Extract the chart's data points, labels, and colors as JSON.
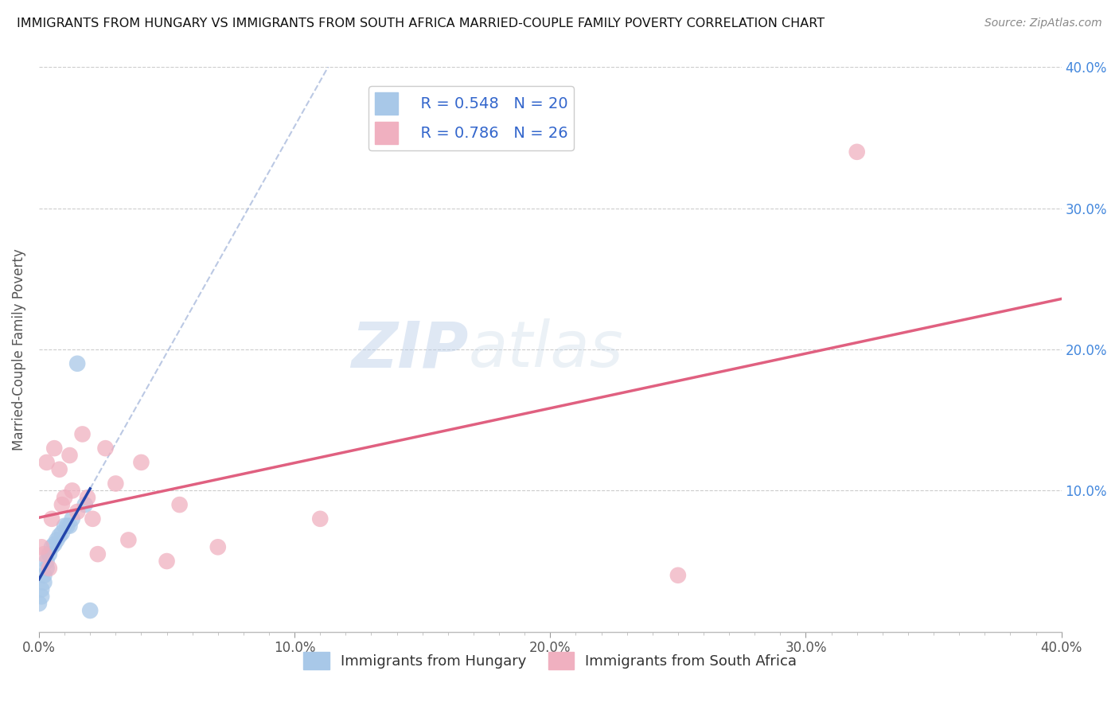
{
  "title": "IMMIGRANTS FROM HUNGARY VS IMMIGRANTS FROM SOUTH AFRICA MARRIED-COUPLE FAMILY POVERTY CORRELATION CHART",
  "source": "Source: ZipAtlas.com",
  "xlabel_bottom": "Immigrants from Hungary",
  "ylabel": "Married-Couple Family Poverty",
  "legend_hungary": "R = 0.548   N = 20",
  "legend_sa": "R = 0.786   N = 26",
  "xlim": [
    0.0,
    0.4
  ],
  "ylim": [
    0.0,
    0.4
  ],
  "color_hungary": "#a8c8e8",
  "color_sa": "#f0b0c0",
  "color_hungary_line": "#2244aa",
  "color_sa_line": "#e06080",
  "color_dash": "#aabbdd",
  "watermark_zip": "ZIP",
  "watermark_atlas": "atlas",
  "hungary_x": [
    0.0,
    0.001,
    0.001,
    0.002,
    0.002,
    0.003,
    0.003,
    0.004,
    0.005,
    0.006,
    0.007,
    0.008,
    0.009,
    0.01,
    0.011,
    0.012,
    0.013,
    0.015,
    0.018,
    0.02
  ],
  "hungary_y": [
    0.02,
    0.025,
    0.03,
    0.035,
    0.04,
    0.045,
    0.05,
    0.055,
    0.06,
    0.062,
    0.065,
    0.068,
    0.07,
    0.075,
    0.075,
    0.075,
    0.08,
    0.19,
    0.09,
    0.015
  ],
  "sa_x": [
    0.001,
    0.002,
    0.003,
    0.004,
    0.005,
    0.006,
    0.008,
    0.009,
    0.01,
    0.012,
    0.013,
    0.015,
    0.017,
    0.019,
    0.021,
    0.023,
    0.026,
    0.03,
    0.035,
    0.04,
    0.05,
    0.055,
    0.07,
    0.11,
    0.25,
    0.32
  ],
  "sa_y": [
    0.06,
    0.055,
    0.12,
    0.045,
    0.08,
    0.13,
    0.115,
    0.09,
    0.095,
    0.125,
    0.1,
    0.085,
    0.14,
    0.095,
    0.08,
    0.055,
    0.13,
    0.105,
    0.065,
    0.12,
    0.05,
    0.09,
    0.06,
    0.08,
    0.04,
    0.34
  ]
}
